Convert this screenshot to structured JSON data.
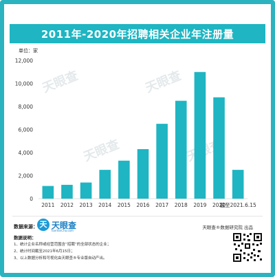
{
  "header": {
    "title": "2011年-2020年招聘相关企业年注册量",
    "unit_label": "单位：家"
  },
  "chart_data": {
    "type": "bar",
    "title": "2011年-2020年招聘相关企业年注册量",
    "xlabel": "",
    "ylabel": "单位：家",
    "categories": [
      "2011",
      "2012",
      "2013",
      "2014",
      "2015",
      "2016",
      "2017",
      "2018",
      "2019",
      "2020",
      "截至2021.6.15"
    ],
    "values": [
      1100,
      1200,
      1400,
      2500,
      3300,
      4300,
      6500,
      8500,
      11000,
      8800,
      2500
    ],
    "yticks": [
      0,
      2000,
      4000,
      6000,
      8000,
      10000,
      12000
    ],
    "ytick_labels": [
      "0",
      "2,000",
      "4,000",
      "6,000",
      "8,000",
      "10,000",
      "12,000"
    ],
    "ylim": [
      0,
      12000
    ],
    "bar_color": "#1fb5c2",
    "grid": false
  },
  "watermark": {
    "text": "天眼查"
  },
  "footer": {
    "source_label": "数据来源：",
    "logo_text": "天眼查",
    "logo_glyph": "天",
    "logo_sub": "TianYanCha.com",
    "credit": "天眼查®数据研究院 出品",
    "notes_title": "数据说明：",
    "notes": [
      "1、统计企业名称或经营范围含“招聘”的全部状态的企业；",
      "2、统计时间截至2021年6月15日；",
      "3、以上数据分析和可视化由天眼查®专业版自动产出。"
    ]
  },
  "colors": {
    "accent": "#1fb5c2",
    "frame": "#2bb3c0",
    "logo": "#1a9bd7"
  }
}
